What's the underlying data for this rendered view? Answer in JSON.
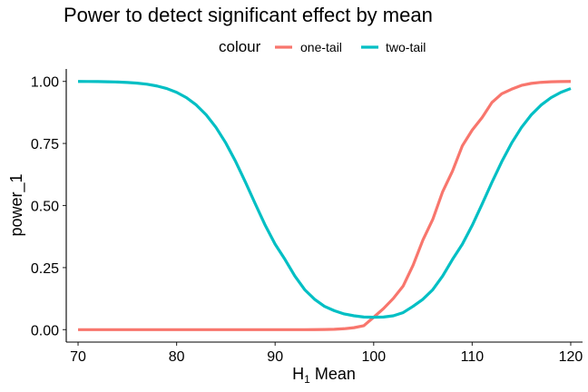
{
  "chart_data": {
    "type": "line",
    "title": "Power to detect significant effect by mean",
    "xlabel": {
      "base": "H",
      "subscript": "1",
      "rest": " Mean"
    },
    "ylabel": "power_1",
    "xlim": [
      68.8,
      121.2
    ],
    "ylim": [
      -0.05,
      1.05
    ],
    "xticks": [
      70,
      80,
      90,
      100,
      110,
      120
    ],
    "yticks": [
      0,
      0.25,
      0.5,
      0.75,
      1.0
    ],
    "xtick_labels": [
      "70",
      "80",
      "90",
      "100",
      "110",
      "120"
    ],
    "ytick_labels": [
      "0.00",
      "0.25",
      "0.50",
      "0.75",
      "1.00"
    ],
    "legend": {
      "title": "colour",
      "position": "top"
    },
    "grid": false,
    "x": [
      70,
      71,
      72,
      73,
      74,
      75,
      76,
      77,
      78,
      79,
      80,
      81,
      82,
      83,
      84,
      85,
      86,
      87,
      88,
      89,
      90,
      91,
      92,
      93,
      94,
      95,
      96,
      97,
      98,
      99,
      100,
      101,
      102,
      103,
      104,
      105,
      106,
      107,
      108,
      109,
      110,
      111,
      112,
      113,
      114,
      115,
      116,
      117,
      118,
      119,
      120
    ],
    "series": [
      {
        "name": "one-tail",
        "color": "#F8766D",
        "values": [
          0,
          0,
          0,
          0,
          0,
          0,
          0,
          0,
          0,
          0,
          0,
          0,
          0,
          0,
          0,
          0,
          0,
          0,
          0,
          0,
          0,
          0,
          0,
          0.0001,
          0.0003,
          0.0007,
          0.0017,
          0.0038,
          0.008,
          0.0161,
          0.05,
          0.085,
          0.1261,
          0.1762,
          0.2595,
          0.3613,
          0.4443,
          0.5557,
          0.6387,
          0.7405,
          0.8038,
          0.8539,
          0.915,
          0.95,
          0.9685,
          0.9839,
          0.992,
          0.9962,
          0.9983,
          0.9993,
          0.9997
        ]
      },
      {
        "name": "two-tail",
        "color": "#00BFC4",
        "values": [
          0.9997,
          0.9995,
          0.9992,
          0.9985,
          0.9975,
          0.9957,
          0.9929,
          0.9885,
          0.9815,
          0.9712,
          0.956,
          0.9345,
          0.9049,
          0.8654,
          0.8145,
          0.7514,
          0.6767,
          0.5931,
          0.5054,
          0.42,
          0.3442,
          0.2829,
          0.2161,
          0.1611,
          0.1226,
          0.0942,
          0.0765,
          0.0634,
          0.056,
          0.051,
          0.05,
          0.051,
          0.056,
          0.0689,
          0.0942,
          0.1226,
          0.1611,
          0.2161,
          0.2829,
          0.3442,
          0.42,
          0.5054,
          0.5931,
          0.6767,
          0.7514,
          0.8145,
          0.8654,
          0.9049,
          0.9345,
          0.956,
          0.9712
        ]
      }
    ]
  }
}
